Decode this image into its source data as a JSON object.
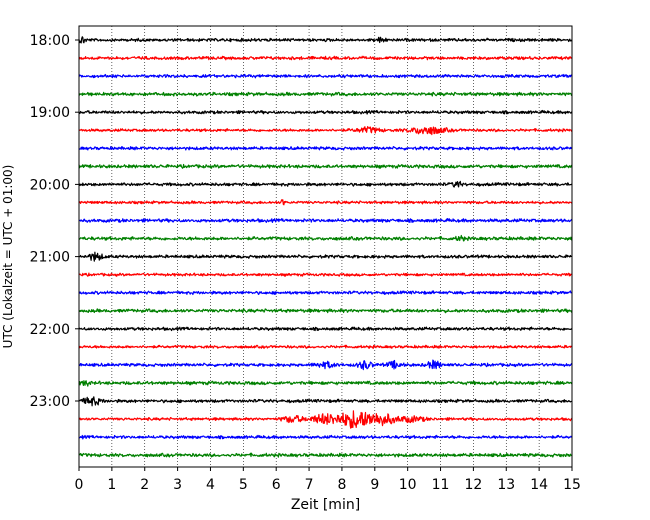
{
  "chart_data": {
    "type": "line",
    "title": "",
    "xlabel": "Zeit  [min]",
    "ylabel": "UTC (Lokalzeit = UTC + 01:00)",
    "xlim": [
      0,
      15
    ],
    "x_ticks": [
      "0",
      "1",
      "2",
      "3",
      "4",
      "5",
      "6",
      "7",
      "8",
      "9",
      "10",
      "11",
      "12",
      "13",
      "14",
      "15"
    ],
    "y_ticks": [
      "18:00",
      "19:00",
      "20:00",
      "21:00",
      "22:00",
      "23:00"
    ],
    "trace_interval_min": 15,
    "grid": "vertical dotted",
    "colors_cycle": [
      "#000000",
      "#ff0000",
      "#0000ff",
      "#008000"
    ],
    "traces": [
      {
        "start": "18:00",
        "color": "#000000",
        "noise": 2.0,
        "events": [
          {
            "t": 0.1,
            "amp": 6,
            "w": 0.08
          },
          {
            "t": 9.2,
            "amp": 4,
            "w": 0.1
          }
        ]
      },
      {
        "start": "18:15",
        "color": "#ff0000",
        "noise": 2.0,
        "events": []
      },
      {
        "start": "18:30",
        "color": "#0000ff",
        "noise": 2.0,
        "events": []
      },
      {
        "start": "18:45",
        "color": "#008000",
        "noise": 2.2,
        "events": []
      },
      {
        "start": "19:00",
        "color": "#000000",
        "noise": 2.0,
        "events": []
      },
      {
        "start": "19:15",
        "color": "#ff0000",
        "noise": 1.8,
        "events": [
          {
            "t": 8.8,
            "amp": 4,
            "w": 0.35
          },
          {
            "t": 10.6,
            "amp": 6,
            "w": 0.5
          }
        ]
      },
      {
        "start": "19:30",
        "color": "#0000ff",
        "noise": 2.0,
        "events": []
      },
      {
        "start": "19:45",
        "color": "#008000",
        "noise": 2.2,
        "events": []
      },
      {
        "start": "20:00",
        "color": "#000000",
        "noise": 2.0,
        "events": [
          {
            "t": 11.5,
            "amp": 5,
            "w": 0.12
          }
        ]
      },
      {
        "start": "20:15",
        "color": "#ff0000",
        "noise": 1.8,
        "events": [
          {
            "t": 6.2,
            "amp": 5,
            "w": 0.05
          }
        ]
      },
      {
        "start": "20:30",
        "color": "#0000ff",
        "noise": 2.2,
        "events": []
      },
      {
        "start": "20:45",
        "color": "#008000",
        "noise": 2.2,
        "events": [
          {
            "t": 11.6,
            "amp": 4,
            "w": 0.1
          }
        ]
      },
      {
        "start": "21:00",
        "color": "#000000",
        "noise": 2.0,
        "events": [
          {
            "t": 0.5,
            "amp": 6,
            "w": 0.2
          }
        ]
      },
      {
        "start": "21:15",
        "color": "#ff0000",
        "noise": 1.8,
        "events": []
      },
      {
        "start": "21:30",
        "color": "#0000ff",
        "noise": 2.0,
        "events": []
      },
      {
        "start": "21:45",
        "color": "#008000",
        "noise": 2.2,
        "events": []
      },
      {
        "start": "22:00",
        "color": "#000000",
        "noise": 2.0,
        "events": []
      },
      {
        "start": "22:15",
        "color": "#ff0000",
        "noise": 1.8,
        "events": []
      },
      {
        "start": "22:30",
        "color": "#0000ff",
        "noise": 2.0,
        "events": [
          {
            "t": 7.5,
            "amp": 4,
            "w": 0.3
          },
          {
            "t": 8.7,
            "amp": 6,
            "w": 0.2
          },
          {
            "t": 9.6,
            "amp": 5,
            "w": 0.2
          },
          {
            "t": 10.8,
            "amp": 6,
            "w": 0.2
          }
        ]
      },
      {
        "start": "22:45",
        "color": "#008000",
        "noise": 2.2,
        "events": [
          {
            "t": 0.2,
            "amp": 4,
            "w": 0.1
          }
        ]
      },
      {
        "start": "23:00",
        "color": "#000000",
        "noise": 2.0,
        "events": [
          {
            "t": 0.4,
            "amp": 6,
            "w": 0.25
          }
        ]
      },
      {
        "start": "23:15",
        "color": "#ff0000",
        "noise": 1.8,
        "events": [
          {
            "t": 6.5,
            "amp": 5,
            "w": 0.3
          },
          {
            "t": 7.5,
            "amp": 8,
            "w": 0.4
          },
          {
            "t": 8.4,
            "amp": 14,
            "w": 0.45
          },
          {
            "t": 9.2,
            "amp": 9,
            "w": 0.4
          },
          {
            "t": 10.1,
            "amp": 4,
            "w": 0.4
          }
        ]
      },
      {
        "start": "23:30",
        "color": "#0000ff",
        "noise": 2.0,
        "events": []
      },
      {
        "start": "23:45",
        "color": "#008000",
        "noise": 2.2,
        "events": []
      }
    ]
  }
}
